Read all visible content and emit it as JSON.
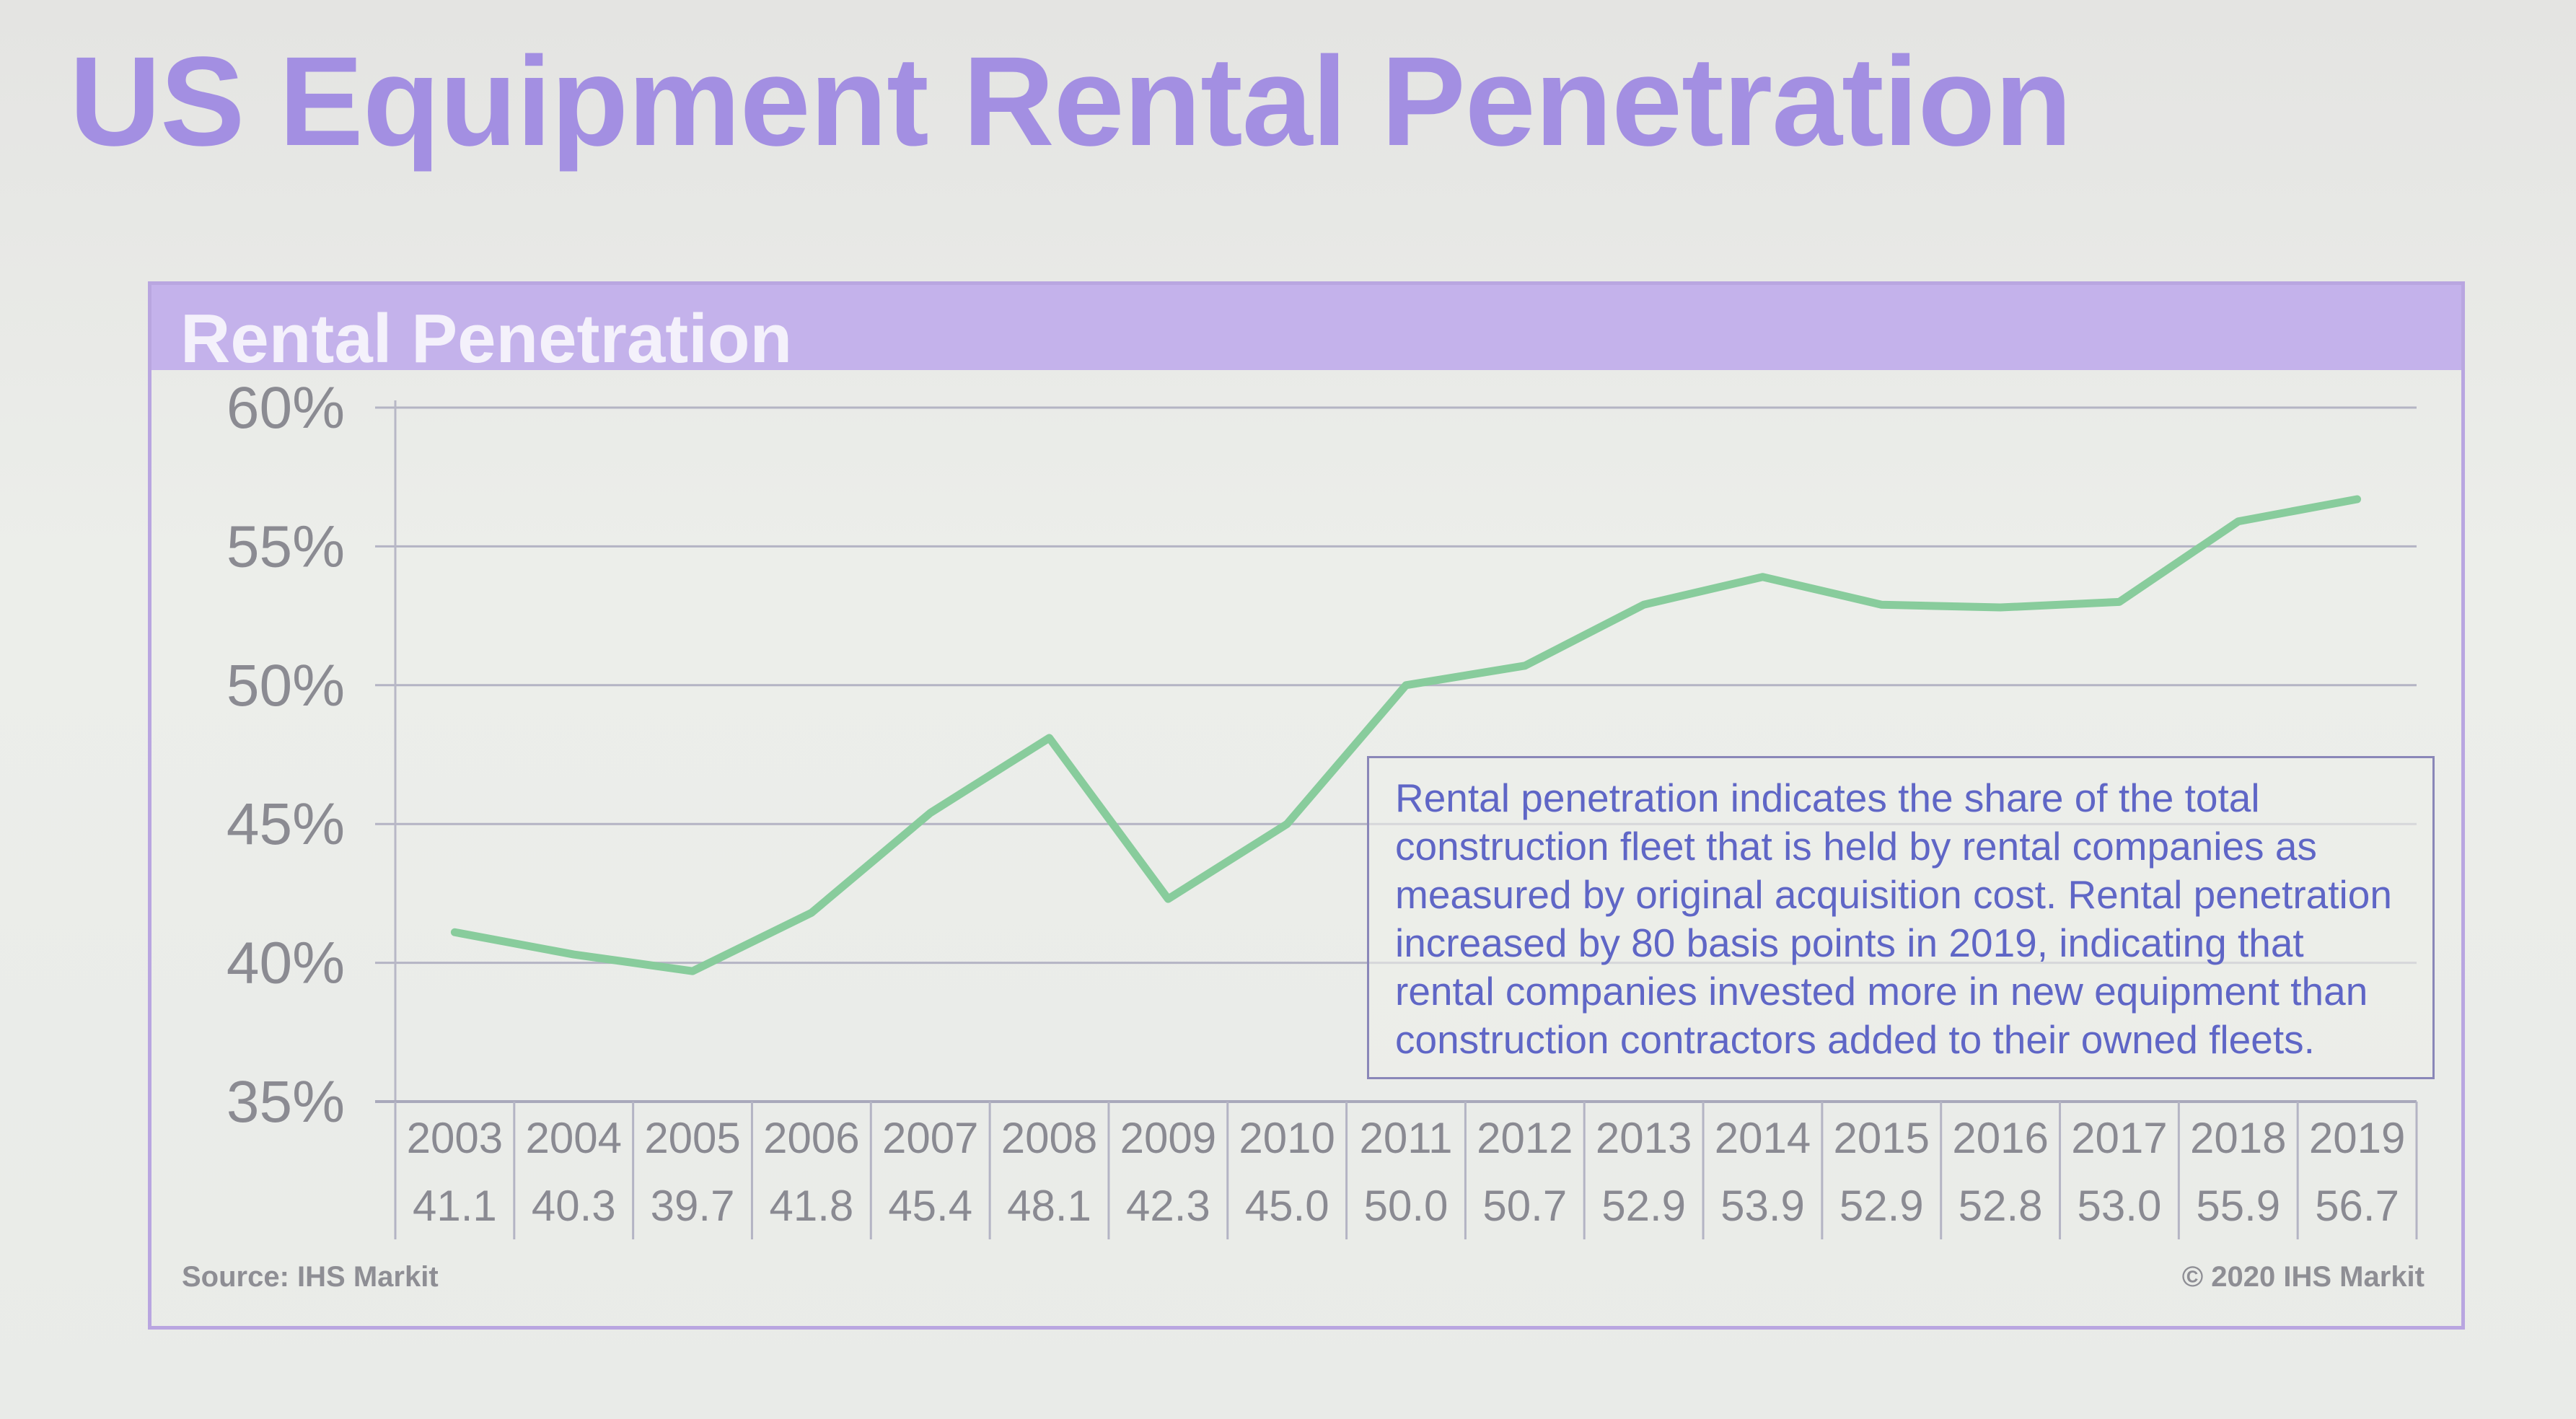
{
  "slide": {
    "title": "US Equipment Rental Penetration"
  },
  "chart_data": {
    "type": "line",
    "title": "Rental Penetration",
    "xlabel": "",
    "ylabel": "",
    "categories": [
      "2003",
      "2004",
      "2005",
      "2006",
      "2007",
      "2008",
      "2009",
      "2010",
      "2011",
      "2012",
      "2013",
      "2014",
      "2015",
      "2016",
      "2017",
      "2018",
      "2019"
    ],
    "series": [
      {
        "values": [
          41.1,
          40.3,
          39.7,
          41.8,
          45.4,
          48.1,
          42.3,
          45.0,
          50.0,
          50.7,
          52.9,
          53.9,
          52.9,
          52.8,
          53.0,
          55.9,
          56.7
        ]
      }
    ],
    "value_labels": [
      "41.1",
      "40.3",
      "39.7",
      "41.8",
      "45.4",
      "48.1",
      "42.3",
      "45.0",
      "50.0",
      "50.7",
      "52.9",
      "53.9",
      "52.9",
      "52.8",
      "53.0",
      "55.9",
      "56.7"
    ],
    "yticks": [
      "35%",
      "40%",
      "45%",
      "50%",
      "55%",
      "60%"
    ],
    "ylim": [
      35,
      60
    ],
    "grid": true,
    "line_color": "#88cc9c"
  },
  "note": {
    "lines": [
      "Rental penetration indicates the share of the total",
      "construction fleet that is held by rental companies as",
      "measured by original acquisition cost. Rental penetration",
      "increased by 80 basis points in 2019, indicating that",
      "rental companies invested more in new equipment than",
      "construction contractors added to their owned fleets."
    ]
  },
  "footer": {
    "source": "Source: IHS Markit",
    "copyright": "© 2020 IHS Markit"
  }
}
